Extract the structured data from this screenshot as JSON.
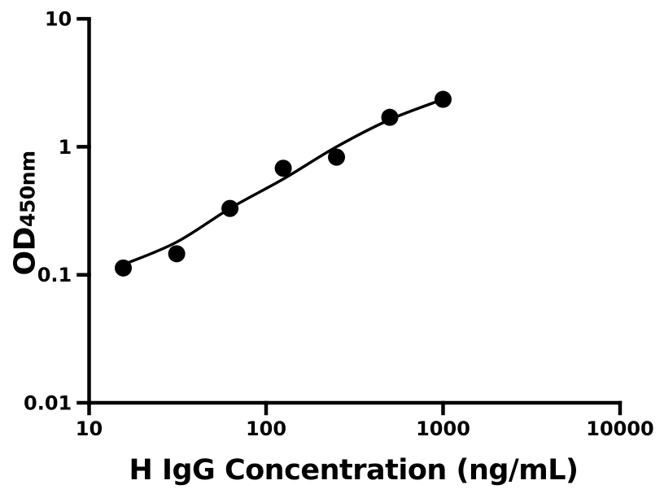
{
  "figure": {
    "background": "#ffffff",
    "ink_color": "#000000"
  },
  "chart_data": {
    "type": "scatter",
    "title": "",
    "xlabel": "H IgG Concentration (ng/mL)",
    "ylabel_main": "OD",
    "ylabel_sub": "450nm",
    "x_scale": "log",
    "y_scale": "log",
    "xlim": [
      10,
      10000
    ],
    "ylim": [
      0.01,
      10
    ],
    "x_ticks": [
      10,
      100,
      1000,
      10000
    ],
    "x_tick_labels": [
      "10",
      "100",
      "1000",
      "10000"
    ],
    "y_ticks": [
      10,
      1,
      0.1,
      0.01
    ],
    "y_tick_labels": [
      "10",
      "1",
      "0.1",
      "0.01"
    ],
    "grid": false,
    "legend": null,
    "series": [
      {
        "name": "standard-points",
        "type": "scatter",
        "marker": "filled-circle",
        "color": "#000000",
        "x": [
          15.6,
          31.25,
          62.5,
          125,
          250,
          500,
          1000
        ],
        "y": [
          0.113,
          0.146,
          0.33,
          0.68,
          0.83,
          1.7,
          2.35
        ]
      },
      {
        "name": "fit-curve",
        "type": "line",
        "color": "#000000",
        "x": [
          15.6,
          31.25,
          62.5,
          125,
          250,
          500,
          1000
        ],
        "y": [
          0.12,
          0.18,
          0.33,
          0.56,
          1.0,
          1.63,
          2.35
        ]
      }
    ]
  }
}
